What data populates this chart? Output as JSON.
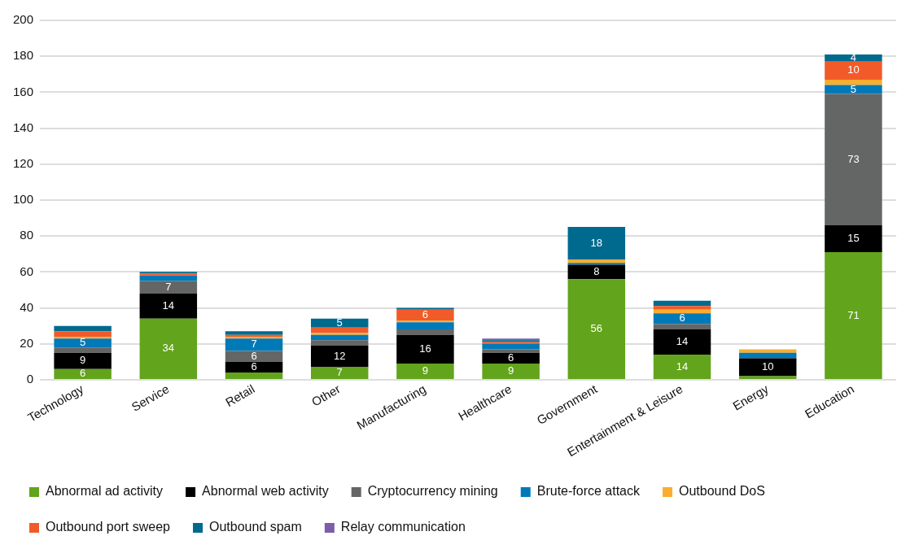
{
  "chart_data": {
    "type": "bar",
    "stacked": true,
    "categories": [
      "Technology",
      "Service",
      "Retail",
      "Other",
      "Manufacturing",
      "Healthcare",
      "Government",
      "Entertainment & Leisure",
      "Energy",
      "Education"
    ],
    "series": [
      {
        "name": "Abnormal ad activity",
        "color": "#62a41c",
        "values": [
          6,
          34,
          4,
          7,
          9,
          9,
          56,
          14,
          2,
          71
        ],
        "value_labels": [
          "6",
          "34",
          null,
          "7",
          "9",
          "9",
          "56",
          "14",
          null,
          "71"
        ]
      },
      {
        "name": "Abnormal web activity",
        "color": "#000000",
        "values": [
          9,
          14,
          6,
          12,
          16,
          6,
          8,
          14,
          10,
          15
        ],
        "value_labels": [
          "9",
          "14",
          "6",
          "12",
          "16",
          "6",
          "8",
          "14",
          "10",
          "15"
        ]
      },
      {
        "name": "Cryptocurrency mining",
        "color": "#646665",
        "values": [
          3,
          7,
          6,
          3,
          3,
          2,
          0,
          3,
          0,
          73
        ],
        "value_labels": [
          null,
          "7",
          "6",
          null,
          null,
          null,
          null,
          null,
          null,
          "73"
        ]
      },
      {
        "name": "Brute-force attack",
        "color": "#0079b8",
        "values": [
          5,
          3,
          7,
          3,
          4,
          3,
          1,
          6,
          3,
          5
        ],
        "value_labels": [
          "5",
          null,
          "7",
          null,
          null,
          null,
          null,
          "6",
          null,
          "5"
        ]
      },
      {
        "name": "Outbound DoS",
        "color": "#f9ae2e",
        "values": [
          1,
          0,
          1,
          1,
          1,
          0,
          2,
          2,
          2,
          3
        ],
        "value_labels": [
          null,
          null,
          null,
          null,
          null,
          null,
          null,
          null,
          null,
          null
        ]
      },
      {
        "name": "Outbound port sweep",
        "color": "#f15b2a",
        "values": [
          3,
          1,
          1,
          3,
          6,
          1,
          0,
          2,
          0,
          10
        ],
        "value_labels": [
          null,
          null,
          null,
          null,
          "6",
          null,
          null,
          null,
          null,
          "10"
        ]
      },
      {
        "name": "Outbound spam",
        "color": "#006a8e",
        "values": [
          3,
          1,
          2,
          5,
          1,
          1,
          18,
          3,
          0,
          4
        ],
        "value_labels": [
          null,
          null,
          null,
          "5",
          null,
          null,
          "18",
          null,
          null,
          "4"
        ]
      },
      {
        "name": "Relay communication",
        "color": "#7b5ea7",
        "values": [
          0,
          0,
          0,
          0,
          0,
          1,
          0,
          0,
          0,
          0
        ],
        "value_labels": [
          null,
          null,
          null,
          null,
          null,
          null,
          null,
          null,
          null,
          null
        ]
      }
    ],
    "ylim": [
      0,
      200
    ],
    "yticks": [
      0,
      20,
      40,
      60,
      80,
      100,
      120,
      140,
      160,
      180,
      200
    ],
    "grid": "y",
    "legend": "bottom"
  }
}
